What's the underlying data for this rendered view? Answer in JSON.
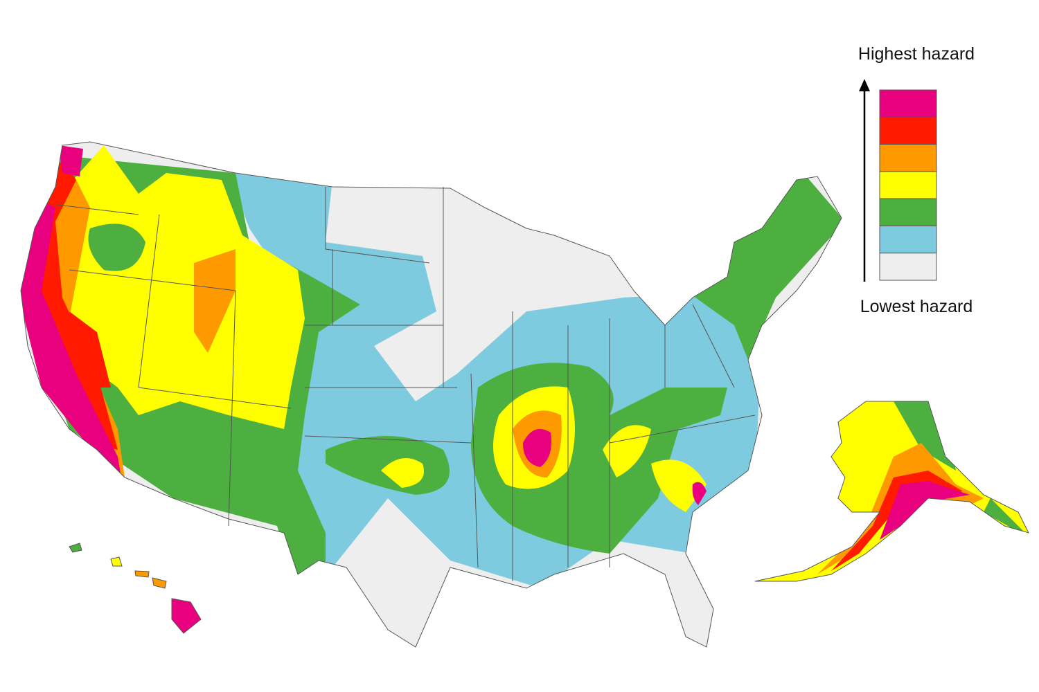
{
  "legend": {
    "top_label": "Highest hazard",
    "bottom_label": "Lowest hazard",
    "colors": [
      "#e8007f",
      "#ff1a00",
      "#ff9900",
      "#ffff00",
      "#4caf3f",
      "#7ecbe0",
      "#eeeeee"
    ]
  }
}
